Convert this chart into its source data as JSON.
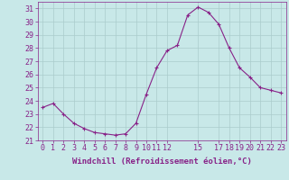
{
  "x": [
    0,
    1,
    2,
    3,
    4,
    5,
    6,
    7,
    8,
    9,
    10,
    11,
    12,
    13,
    14,
    15,
    16,
    17,
    18,
    19,
    20,
    21,
    22,
    23
  ],
  "y": [
    23.5,
    23.8,
    23.0,
    22.3,
    21.9,
    21.6,
    21.5,
    21.4,
    21.5,
    22.3,
    24.5,
    26.5,
    27.8,
    28.2,
    30.5,
    31.1,
    30.7,
    29.8,
    28.0,
    26.5,
    25.8,
    25.0,
    24.8,
    24.6
  ],
  "line_color": "#882288",
  "marker": "+",
  "background_color": "#c8e8e8",
  "grid_color": "#aacccc",
  "xlabel": "Windchill (Refroidissement éolien,°C)",
  "ylim": [
    21,
    31.5
  ],
  "xlim": [
    -0.5,
    23.5
  ],
  "xticks": [
    0,
    1,
    2,
    3,
    4,
    5,
    6,
    7,
    8,
    9,
    10,
    11,
    12,
    15,
    17,
    18,
    19,
    20,
    21,
    22,
    23
  ],
  "yticks": [
    21,
    22,
    23,
    24,
    25,
    26,
    27,
    28,
    29,
    30,
    31
  ],
  "tick_color": "#882288",
  "label_color": "#882288",
  "xlabel_fontsize": 6.5,
  "tick_fontsize": 6.0,
  "spine_color": "#882288"
}
